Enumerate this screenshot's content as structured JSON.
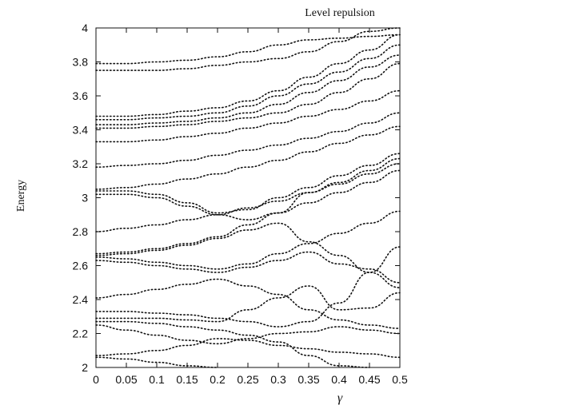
{
  "chart_data": {
    "type": "line",
    "title": "Level repulsion",
    "xlabel": "γ",
    "ylabel": "Energy",
    "xlim": [
      0,
      0.5
    ],
    "ylim": [
      2,
      4
    ],
    "grid": false,
    "legend": "none",
    "xticks": [
      "0",
      "0.05",
      "0.1",
      "0.15",
      "0.2",
      "0.25",
      "0.3",
      "0.35",
      "0.4",
      "0.45",
      "0.5"
    ],
    "yticks": [
      "2",
      "2.2",
      "2.4",
      "2.6",
      "2.8",
      "3",
      "3.2",
      "3.4",
      "3.6",
      "3.8",
      "4"
    ],
    "x": [
      0,
      0.05,
      0.1,
      0.15,
      0.2,
      0.25,
      0.3,
      0.35,
      0.4,
      0.45,
      0.5
    ],
    "series": [
      {
        "values": [
          2.06,
          2.05,
          2.03,
          2.01,
          1.99,
          null,
          null,
          null,
          null,
          null,
          null
        ]
      },
      {
        "values": [
          2.07,
          2.08,
          2.1,
          2.13,
          2.17,
          2.16,
          2.13,
          2.11,
          2.09,
          2.08,
          2.06
        ]
      },
      {
        "values": [
          2.25,
          2.22,
          2.19,
          2.16,
          2.14,
          2.17,
          2.2,
          2.21,
          2.24,
          2.22,
          2.2
        ]
      },
      {
        "values": [
          2.27,
          2.27,
          2.26,
          2.24,
          2.22,
          2.19,
          2.15,
          2.07,
          2.01,
          1.96,
          null
        ]
      },
      {
        "values": [
          2.29,
          2.29,
          2.29,
          2.28,
          2.27,
          2.34,
          2.41,
          2.48,
          2.34,
          2.35,
          2.44
        ]
      },
      {
        "values": [
          2.33,
          2.33,
          2.32,
          2.31,
          2.29,
          2.27,
          2.24,
          2.27,
          2.38,
          2.56,
          2.71
        ]
      },
      {
        "values": [
          2.41,
          2.43,
          2.46,
          2.49,
          2.52,
          2.48,
          2.43,
          2.34,
          2.28,
          2.25,
          2.23
        ]
      },
      {
        "values": [
          2.63,
          2.62,
          2.6,
          2.58,
          2.56,
          2.59,
          2.63,
          2.68,
          2.61,
          2.58,
          2.5
        ]
      },
      {
        "values": [
          2.65,
          2.64,
          2.62,
          2.6,
          2.58,
          2.61,
          2.67,
          2.73,
          2.79,
          2.85,
          2.92
        ]
      },
      {
        "values": [
          2.66,
          2.67,
          2.69,
          2.72,
          2.76,
          2.81,
          2.85,
          2.74,
          2.66,
          2.56,
          2.47
        ]
      },
      {
        "values": [
          2.67,
          2.68,
          2.7,
          2.73,
          2.77,
          2.84,
          2.91,
          2.97,
          3.03,
          3.09,
          3.16
        ]
      },
      {
        "values": [
          2.8,
          2.82,
          2.84,
          2.87,
          2.9,
          2.94,
          2.98,
          3.03,
          3.08,
          3.14,
          3.2
        ]
      },
      {
        "values": [
          3.02,
          3.02,
          3.0,
          2.95,
          2.9,
          2.87,
          2.91,
          3.03,
          3.09,
          3.16,
          3.23
        ]
      },
      {
        "values": [
          3.04,
          3.04,
          3.02,
          2.97,
          2.91,
          2.93,
          3.0,
          3.06,
          3.13,
          3.19,
          3.26
        ]
      },
      {
        "values": [
          3.05,
          3.06,
          3.08,
          3.11,
          3.14,
          3.18,
          3.22,
          3.27,
          3.32,
          3.37,
          3.42
        ]
      },
      {
        "values": [
          3.18,
          3.19,
          3.2,
          3.22,
          3.25,
          3.28,
          3.31,
          3.35,
          3.39,
          3.44,
          3.5
        ]
      },
      {
        "values": [
          3.33,
          3.33,
          3.34,
          3.36,
          3.38,
          3.41,
          3.44,
          3.48,
          3.52,
          3.57,
          3.63
        ]
      },
      {
        "values": [
          3.41,
          3.41,
          3.42,
          3.43,
          3.45,
          3.47,
          3.5,
          3.55,
          3.62,
          3.7,
          3.79
        ]
      },
      {
        "values": [
          3.43,
          3.43,
          3.44,
          3.45,
          3.47,
          3.5,
          3.55,
          3.62,
          3.69,
          3.77,
          3.84
        ]
      },
      {
        "values": [
          3.46,
          3.46,
          3.47,
          3.48,
          3.5,
          3.54,
          3.6,
          3.67,
          3.74,
          3.82,
          3.9
        ]
      },
      {
        "values": [
          3.48,
          3.48,
          3.49,
          3.51,
          3.53,
          3.57,
          3.63,
          3.71,
          3.79,
          3.87,
          3.96
        ]
      },
      {
        "values": [
          3.75,
          3.75,
          3.75,
          3.76,
          3.78,
          3.8,
          3.82,
          3.86,
          3.92,
          3.98,
          4.02
        ]
      },
      {
        "values": [
          3.79,
          3.79,
          3.8,
          3.81,
          3.83,
          3.86,
          3.9,
          3.93,
          3.94,
          3.95,
          3.96
        ]
      }
    ]
  }
}
